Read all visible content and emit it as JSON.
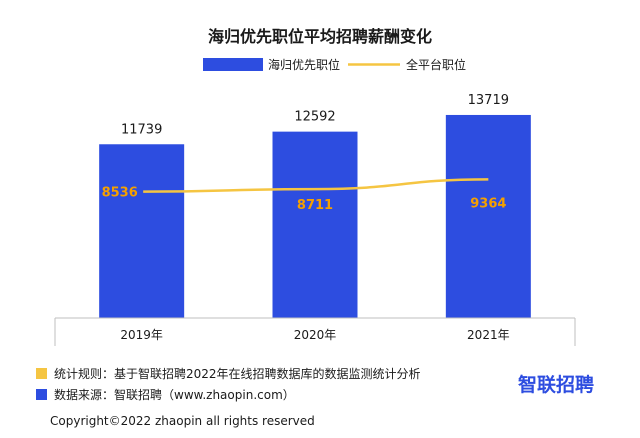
{
  "chart_data": {
    "type": "bar",
    "title": "海归优先职位平均招聘薪酬变化",
    "categories": [
      "2019年",
      "2020年",
      "2021年"
    ],
    "series": [
      {
        "name": "海归优先职位",
        "type": "bar",
        "values": [
          11739,
          12592,
          13719
        ]
      },
      {
        "name": "全平台职位",
        "type": "line",
        "values": [
          8536,
          8711,
          9364
        ]
      }
    ],
    "ylim": [
      0,
      15000
    ],
    "grid": false,
    "legend": "top-center"
  },
  "colors": {
    "bar": "#2d4de0",
    "line": "#f5c542",
    "line_label": "#f5a000",
    "note_rule_marker": "#f5c542",
    "note_source_marker": "#2d4de0",
    "brand": "#2d4de0"
  },
  "notes": {
    "rule": "统计规则：基于智联招聘2022年在线招聘数据库的数据监测统计分析",
    "source": "数据来源：智联招聘（www.zhaopin.com）"
  },
  "brand": "智联招聘",
  "copyright": "Copyright©2022 zhaopin all rights reserved"
}
